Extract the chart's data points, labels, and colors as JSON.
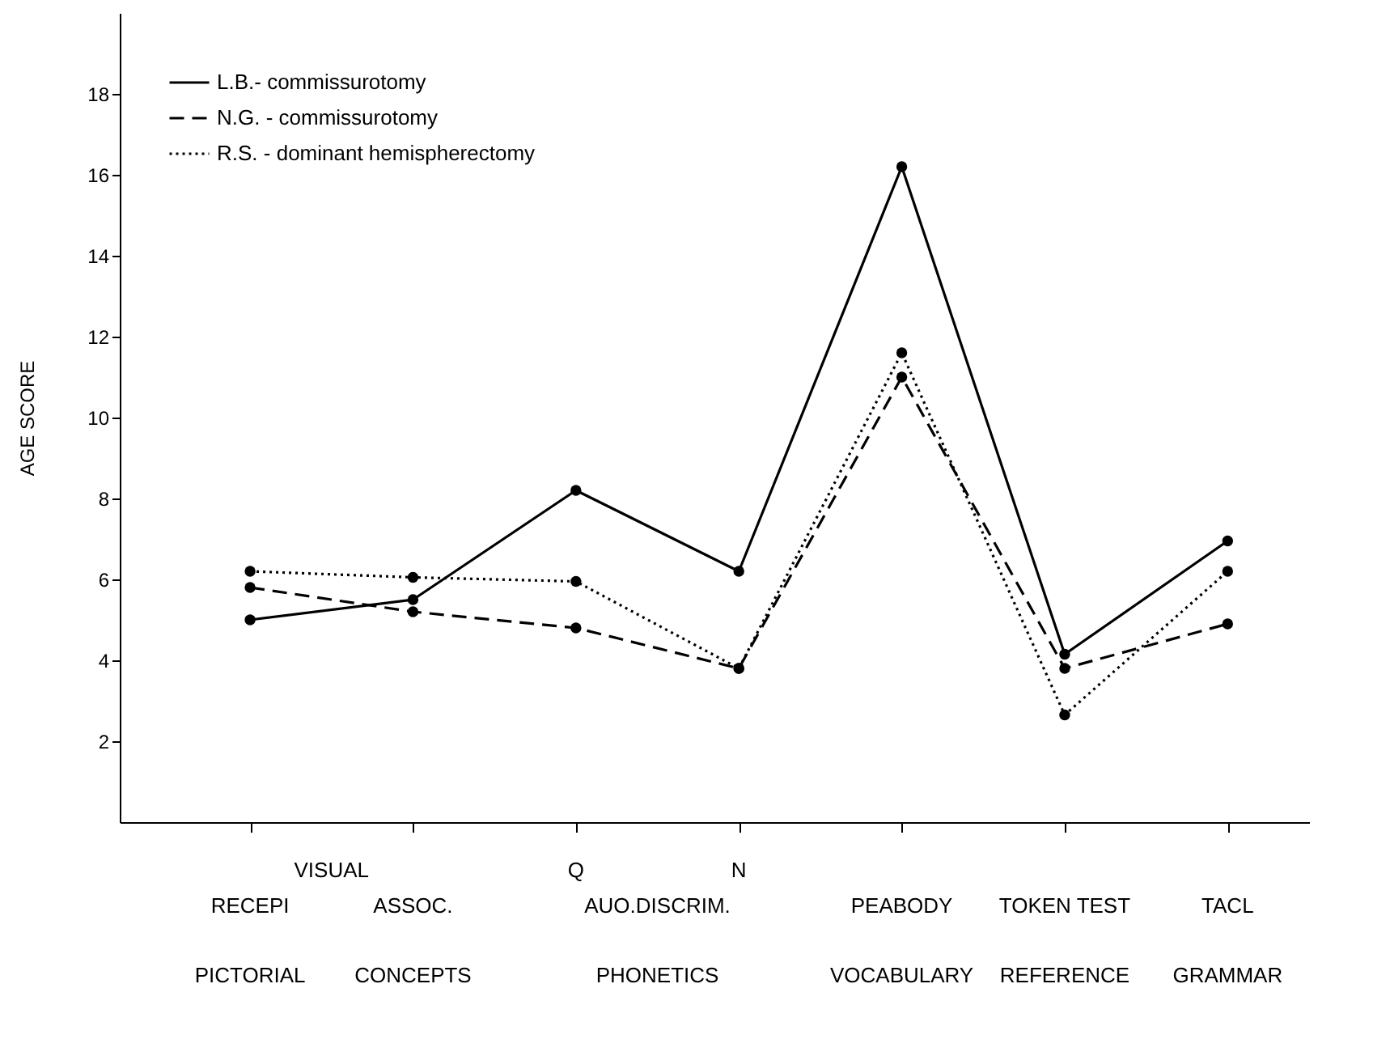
{
  "chart_data": {
    "type": "line",
    "categories": [
      "RECEPI",
      "ASSOC.",
      "Q",
      "N",
      "PEABODY",
      "TOKEN TEST",
      "TACL"
    ],
    "series": [
      {
        "name": "L.B.-  commissurotomy",
        "color": "#000000",
        "line_style": "solid",
        "values": [
          5.0,
          5.5,
          8.2,
          6.2,
          16.2,
          4.15,
          6.95
        ]
      },
      {
        "name": "N.G. - commissurotomy",
        "color": "#000000",
        "line_style": "dashed",
        "values": [
          5.8,
          5.2,
          4.8,
          3.8,
          11.0,
          3.8,
          4.9
        ]
      },
      {
        "name": "R.S. - dominant hemispherectomy",
        "color": "#000000",
        "line_style": "dotted",
        "values": [
          6.2,
          6.05,
          5.95,
          3.8,
          11.6,
          2.65,
          6.2
        ]
      }
    ],
    "ylabel": "AGE  SCORE",
    "ylim": [
      0,
      20
    ],
    "yticks": [
      2,
      4,
      6,
      8,
      10,
      12,
      14,
      16,
      18
    ],
    "annotations": [
      "VISUAL",
      "AUO.DISCRIM.",
      "PICTORIAL",
      "CONCEPTS",
      "PHONETICS",
      "VOCABULARY",
      "REFERENCE",
      "GRAMMAR"
    ],
    "marker": "circle",
    "legend": "top left",
    "grid": false
  }
}
